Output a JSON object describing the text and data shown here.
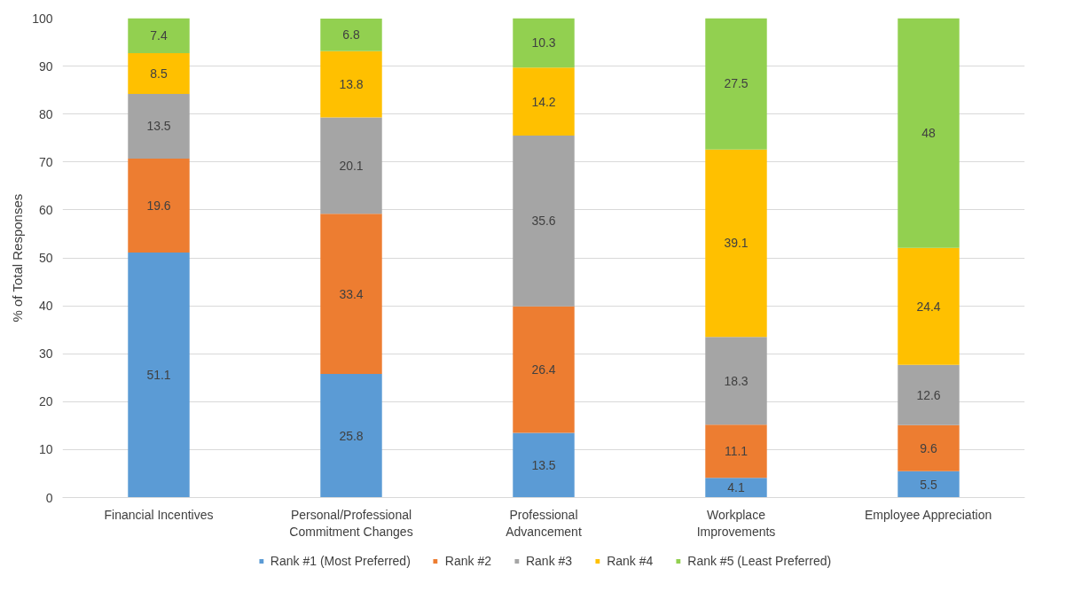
{
  "chart_data": {
    "type": "bar",
    "stacked": true,
    "ylabel": "% of Total Responses",
    "categories": [
      "Financial Incentives",
      "Personal/Professional\nCommitment Changes",
      "Professional\nAdvancement",
      "Workplace\nImprovements",
      "Employee Appreciation"
    ],
    "series": [
      {
        "name": "Rank #1 (Most Preferred)",
        "color": "#5b9bd5",
        "values": [
          51.1,
          25.8,
          13.5,
          4.1,
          5.5
        ]
      },
      {
        "name": "Rank #2",
        "color": "#ed7d31",
        "values": [
          19.6,
          33.4,
          26.4,
          11.1,
          9.6
        ]
      },
      {
        "name": "Rank #3",
        "color": "#a5a5a5",
        "values": [
          13.5,
          20.1,
          35.6,
          18.3,
          12.6
        ]
      },
      {
        "name": "Rank #4",
        "color": "#ffc000",
        "values": [
          8.5,
          13.8,
          14.2,
          39.1,
          24.4
        ]
      },
      {
        "name": "Rank #5 (Least Preferred)",
        "color": "#92d050",
        "values": [
          7.4,
          6.8,
          10.3,
          27.5,
          48
        ]
      }
    ],
    "ylim": [
      0,
      100
    ],
    "yticks": [
      0,
      10,
      20,
      30,
      40,
      50,
      60,
      70,
      80,
      90,
      100
    ],
    "grid": "y",
    "legend": "bottom",
    "data_labels": true
  }
}
